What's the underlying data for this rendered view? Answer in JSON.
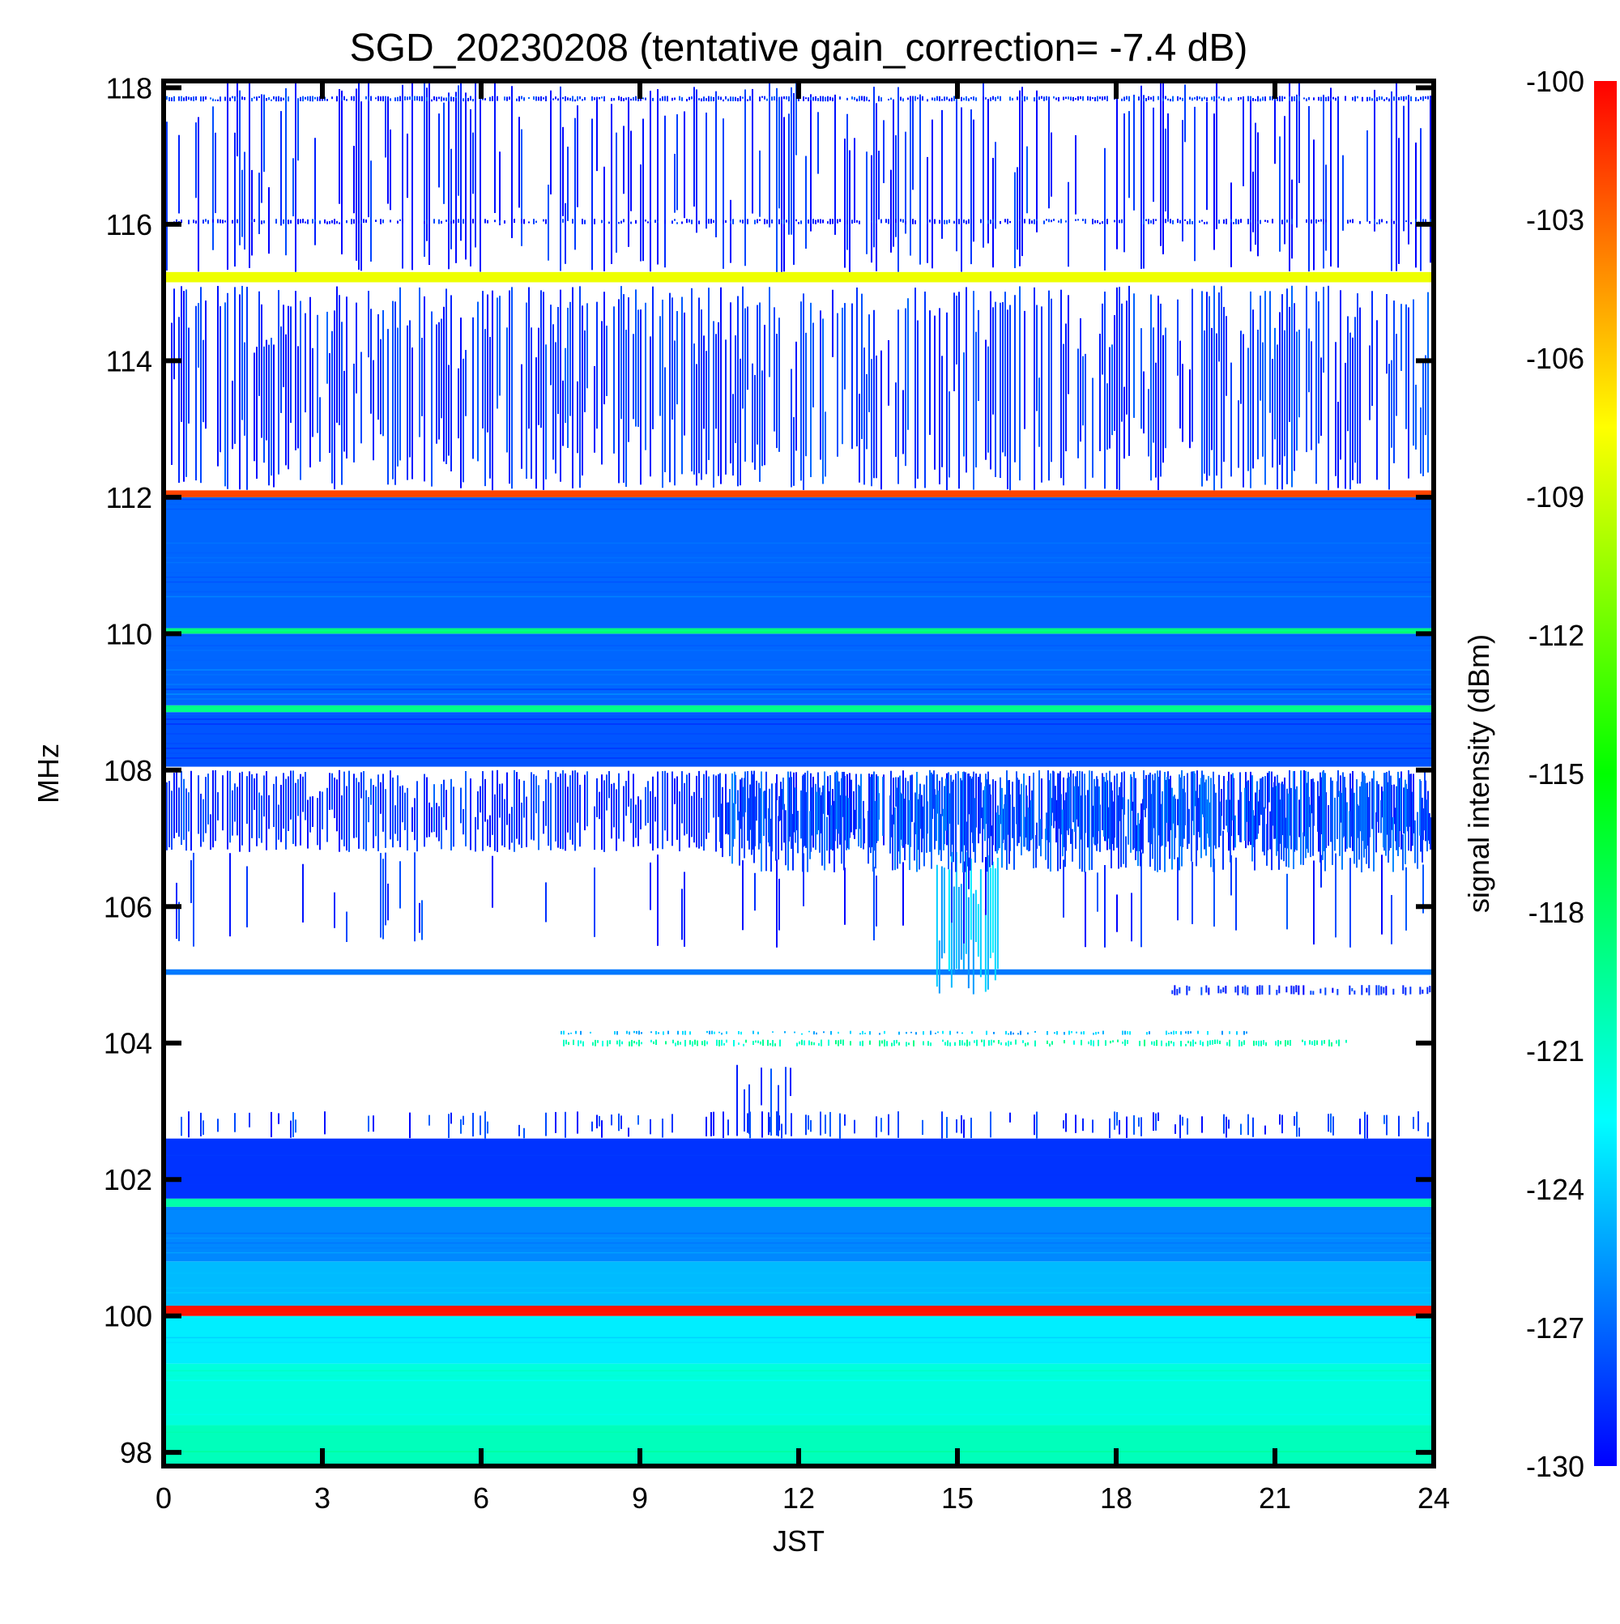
{
  "chart_data": {
    "type": "heatmap",
    "title": "SGD_20230208 (tentative gain_correction= -7.4 dB)",
    "xlabel": "JST",
    "ylabel": "MHz",
    "colorbar_label": "signal intensity (dBm)",
    "xlim": [
      0,
      24
    ],
    "ylim": [
      97.8,
      118.1
    ],
    "clim": [
      -130,
      -100
    ],
    "x_ticks": [
      0,
      3,
      6,
      9,
      12,
      15,
      18,
      21,
      24
    ],
    "y_ticks": [
      98,
      100,
      102,
      104,
      106,
      108,
      110,
      112,
      114,
      116,
      118
    ],
    "colorbar_ticks": [
      -100,
      -103,
      -106,
      -109,
      -112,
      -115,
      -118,
      -121,
      -124,
      -127,
      -130
    ],
    "colormap": [
      "#0000ff",
      "#0080ff",
      "#00ffff",
      "#00ff80",
      "#00ff00",
      "#80ff00",
      "#ffff00",
      "#ff8000",
      "#ff0000"
    ],
    "background_color": "#ffffff",
    "bands": [
      {
        "f_low": 97.8,
        "f_high": 98.4,
        "t_start": 0,
        "t_end": 24,
        "dbm": -120.5,
        "density": 1.0
      },
      {
        "f_low": 98.4,
        "f_high": 99.3,
        "t_start": 0,
        "t_end": 24,
        "dbm": -121.5,
        "density": 1.0
      },
      {
        "f_low": 99.3,
        "f_high": 100.0,
        "t_start": 0,
        "t_end": 24,
        "dbm": -123.0,
        "density": 1.0
      },
      {
        "f_low": 100.0,
        "f_high": 100.15,
        "t_start": 0,
        "t_end": 24,
        "dbm": -100.5,
        "density": 1.0
      },
      {
        "f_low": 100.15,
        "f_high": 100.8,
        "t_start": 0,
        "t_end": 24,
        "dbm": -124.5,
        "density": 1.0
      },
      {
        "f_low": 100.8,
        "f_high": 101.6,
        "t_start": 0,
        "t_end": 24,
        "dbm": -126.0,
        "density": 1.0
      },
      {
        "f_low": 101.6,
        "f_high": 101.72,
        "t_start": 0,
        "t_end": 24,
        "dbm": -120.0,
        "density": 1.0
      },
      {
        "f_low": 101.72,
        "f_high": 102.6,
        "t_start": 0,
        "t_end": 24,
        "dbm": -128.5,
        "density": 1.0
      },
      {
        "f_low": 102.6,
        "f_high": 103.0,
        "t_start": 0,
        "t_end": 24,
        "dbm": -129.0,
        "density": 0.25
      },
      {
        "f_low": 102.6,
        "f_high": 103.7,
        "t_start": 10.5,
        "t_end": 12.0,
        "dbm": -129.0,
        "density": 0.35
      },
      {
        "f_low": 103.95,
        "f_high": 104.05,
        "t_start": 7.5,
        "t_end": 22.5,
        "dbm": -121.0,
        "density": 0.6
      },
      {
        "f_low": 104.12,
        "f_high": 104.18,
        "t_start": 7.5,
        "t_end": 20.5,
        "dbm": -125.0,
        "density": 0.4
      },
      {
        "f_low": 104.7,
        "f_high": 104.85,
        "t_start": 19.0,
        "t_end": 24,
        "dbm": -129.5,
        "density": 0.5
      },
      {
        "f_low": 105.0,
        "f_high": 105.08,
        "t_start": 0,
        "t_end": 24,
        "dbm": -126.5,
        "density": 1.0
      },
      {
        "f_low": 104.7,
        "f_high": 106.8,
        "t_start": 14.6,
        "t_end": 15.8,
        "dbm": -125.0,
        "density": 0.95
      },
      {
        "f_low": 105.4,
        "f_high": 106.8,
        "t_start": 0,
        "t_end": 24,
        "dbm": -129.5,
        "density": 0.12
      },
      {
        "f_low": 106.8,
        "f_high": 108.0,
        "t_start": 0,
        "t_end": 24,
        "dbm": -129.0,
        "density": 0.85
      },
      {
        "f_low": 106.5,
        "f_high": 108.0,
        "t_start": 10.5,
        "t_end": 24,
        "dbm": -128.0,
        "density": 0.9
      },
      {
        "f_low": 108.0,
        "f_high": 108.05,
        "t_start": 0,
        "t_end": 24,
        "dbm": -130.0,
        "density": 0.0
      },
      {
        "f_low": 108.05,
        "f_high": 108.85,
        "t_start": 0,
        "t_end": 24,
        "dbm": -127.5,
        "density": 1.0
      },
      {
        "f_low": 108.85,
        "f_high": 108.95,
        "t_start": 0,
        "t_end": 24,
        "dbm": -119.0,
        "density": 1.0
      },
      {
        "f_low": 108.95,
        "f_high": 110.0,
        "t_start": 0,
        "t_end": 24,
        "dbm": -127.0,
        "density": 1.0
      },
      {
        "f_low": 110.0,
        "f_high": 110.08,
        "t_start": 0,
        "t_end": 24,
        "dbm": -118.5,
        "density": 1.0
      },
      {
        "f_low": 110.08,
        "f_high": 112.0,
        "t_start": 0,
        "t_end": 24,
        "dbm": -127.0,
        "density": 1.0
      },
      {
        "f_low": 112.0,
        "f_high": 112.1,
        "t_start": 0,
        "t_end": 24,
        "dbm": -102.0,
        "density": 1.0
      },
      {
        "f_low": 112.1,
        "f_high": 115.1,
        "t_start": 0,
        "t_end": 24,
        "dbm": -129.0,
        "density": 0.7
      },
      {
        "f_low": 115.15,
        "f_high": 115.3,
        "t_start": 0,
        "t_end": 24,
        "dbm": -108.0,
        "density": 1.0
      },
      {
        "f_low": 115.3,
        "f_high": 118.1,
        "t_start": 0,
        "t_end": 24,
        "dbm": -129.5,
        "density": 0.35
      },
      {
        "f_low": 117.8,
        "f_high": 117.88,
        "t_start": 0,
        "t_end": 24,
        "dbm": -129.0,
        "density": 0.8
      },
      {
        "f_low": 116.0,
        "f_high": 116.08,
        "t_start": 0,
        "t_end": 24,
        "dbm": -129.5,
        "density": 0.6
      }
    ]
  }
}
